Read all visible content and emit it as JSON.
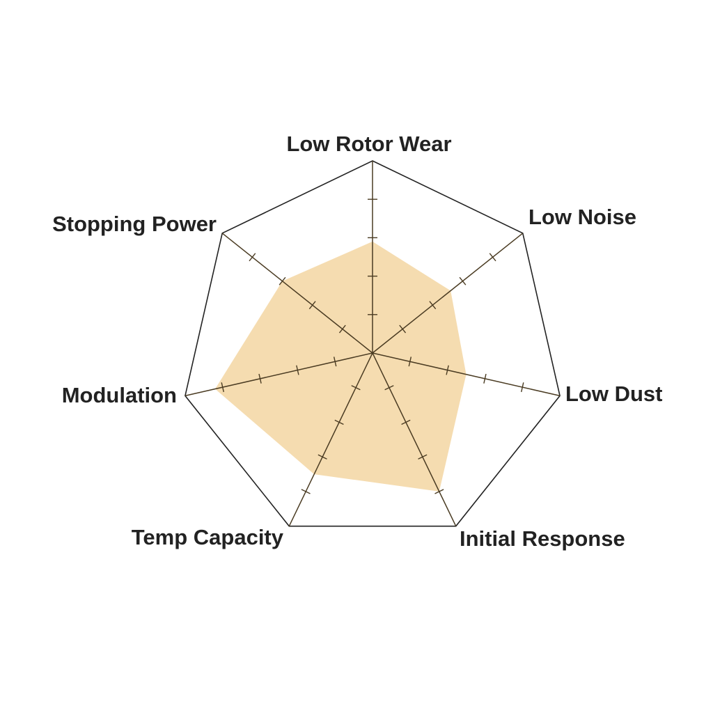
{
  "chart_data": {
    "type": "radar",
    "title": "",
    "axes": [
      "Low Rotor Wear",
      "Low Noise",
      "Low Dust",
      "Initial Response",
      "Temp Capacity",
      "Modulation",
      "Stopping Power"
    ],
    "values": [
      2.9,
      2.6,
      2.5,
      4.0,
      3.5,
      4.2,
      3.0
    ],
    "range": [
      0,
      5
    ],
    "tick_interval": 1,
    "grid": true,
    "legend": "none",
    "colors": {
      "fill": "#f5dcb0",
      "axis": "#4a3b22",
      "outline": "#222222",
      "label": "#222222"
    }
  }
}
